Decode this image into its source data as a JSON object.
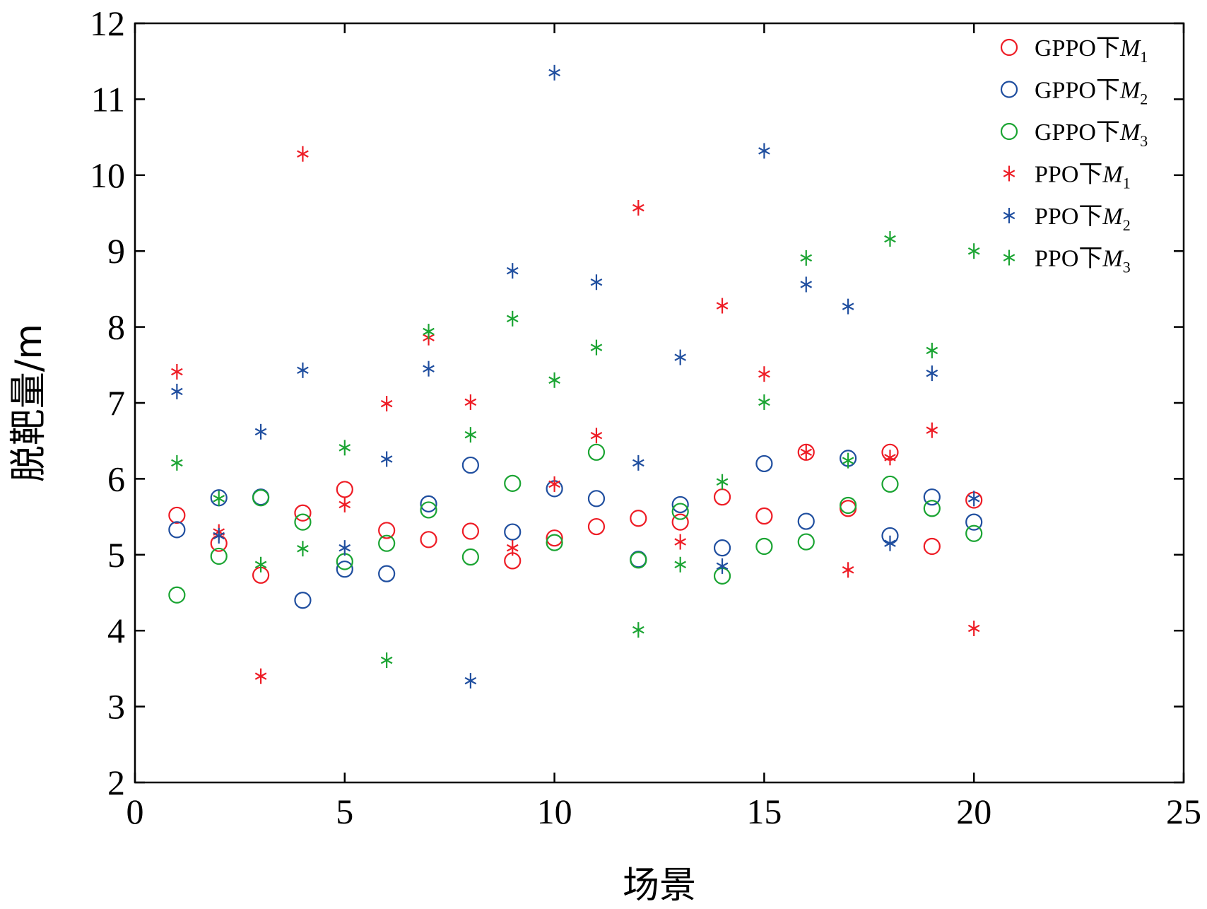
{
  "chart_data": {
    "type": "scatter",
    "xlabel": "场景",
    "ylabel": "脱靶量/m",
    "xlim": [
      0,
      25
    ],
    "ylim": [
      2,
      12
    ],
    "xticks": [
      0,
      5,
      10,
      15,
      20,
      25
    ],
    "yticks": [
      2,
      3,
      4,
      5,
      6,
      7,
      8,
      9,
      10,
      11,
      12
    ],
    "grid": false,
    "legend_position": "top-right",
    "x": [
      1,
      2,
      3,
      4,
      5,
      6,
      7,
      8,
      9,
      10,
      11,
      12,
      13,
      14,
      15,
      16,
      17,
      18,
      19,
      20
    ],
    "series": [
      {
        "name": "GPPO下",
        "sub": "M",
        "index": "1",
        "marker": "circle",
        "color": "#ee1c25",
        "values": [
          5.52,
          5.15,
          4.73,
          5.55,
          5.86,
          5.32,
          5.2,
          5.31,
          4.92,
          5.22,
          5.37,
          5.48,
          5.43,
          5.76,
          5.51,
          6.35,
          5.61,
          6.35,
          5.11,
          5.72
        ]
      },
      {
        "name": "GPPO下",
        "sub": "M",
        "index": "2",
        "marker": "circle",
        "color": "#1f4e9f",
        "values": [
          5.33,
          5.75,
          5.76,
          4.4,
          4.81,
          4.75,
          5.67,
          6.18,
          5.3,
          5.87,
          5.74,
          4.94,
          5.66,
          5.09,
          6.2,
          5.44,
          6.27,
          5.25,
          5.76,
          5.43
        ]
      },
      {
        "name": "GPPO下",
        "sub": "M",
        "index": "3",
        "marker": "circle",
        "color": "#1aa432",
        "values": [
          4.47,
          4.98,
          5.75,
          5.43,
          4.91,
          5.15,
          5.59,
          4.97,
          5.94,
          5.16,
          6.35,
          4.93,
          5.57,
          4.72,
          5.11,
          5.17,
          5.65,
          5.93,
          5.61,
          5.28
        ]
      },
      {
        "name": "PPO下",
        "sub": "M",
        "index": "1",
        "marker": "star",
        "color": "#ee1c25",
        "values": [
          7.41,
          5.3,
          3.4,
          10.28,
          5.66,
          6.99,
          7.86,
          7.01,
          5.09,
          5.93,
          6.57,
          9.57,
          5.17,
          8.28,
          7.38,
          6.35,
          4.8,
          6.28,
          6.64,
          4.03
        ]
      },
      {
        "name": "PPO下",
        "sub": "M",
        "index": "2",
        "marker": "star",
        "color": "#1f4e9f",
        "values": [
          7.15,
          5.25,
          6.62,
          7.43,
          5.09,
          6.26,
          7.45,
          3.34,
          8.74,
          11.35,
          8.59,
          6.21,
          7.6,
          4.85,
          10.32,
          8.56,
          8.27,
          5.15,
          7.39,
          5.74
        ]
      },
      {
        "name": "PPO下",
        "sub": "M",
        "index": "3",
        "marker": "star",
        "color": "#1aa432",
        "values": [
          6.21,
          5.74,
          4.87,
          5.08,
          6.41,
          3.61,
          7.94,
          6.58,
          8.11,
          7.3,
          7.73,
          4.01,
          4.87,
          5.96,
          7.01,
          8.91,
          6.24,
          9.16,
          7.69,
          9.0
        ]
      }
    ]
  }
}
